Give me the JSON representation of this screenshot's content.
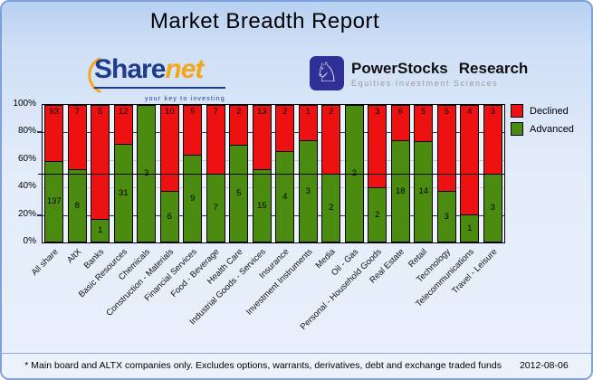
{
  "title": "Market Breadth Report",
  "logos": {
    "sharenet": {
      "share": "Share",
      "net": "net",
      "tagline": "your key to investing"
    },
    "powerstocks": {
      "word1": "PowerStocks",
      "word2": "Research",
      "subtitle": "Equities Investment Sciences",
      "icon": "knight-chess-icon",
      "icon_glyph": "♘"
    }
  },
  "chart_data": {
    "type": "bar",
    "stacking": "percent-100-stacked",
    "title": "Market Breadth Report",
    "categories": [
      "All share",
      "AltX",
      "Banks",
      "Basic Resources",
      "Chemicals",
      "Construction - Materials",
      "Financial Services",
      "Food - Beverage",
      "Health Care",
      "Industrial Goods - Services",
      "Insurance",
      "Investment Instruments",
      "Media",
      "Oil - Gas",
      "Personal - Household Goods",
      "Real Estate",
      "Retail",
      "Technology",
      "Telecommunications",
      "Travel - Leisure"
    ],
    "series": [
      {
        "name": "Declined",
        "color": "#ee1111",
        "values": [
          93,
          7,
          5,
          12,
          0,
          10,
          5,
          7,
          2,
          13,
          2,
          1,
          2,
          0,
          3,
          6,
          5,
          5,
          4,
          3
        ]
      },
      {
        "name": "Advanced",
        "color": "#4b8b10",
        "values": [
          137,
          8,
          1,
          31,
          3,
          6,
          9,
          7,
          5,
          15,
          4,
          3,
          2,
          2,
          2,
          18,
          14,
          3,
          1,
          3
        ]
      }
    ],
    "ylim": [
      0,
      100
    ],
    "yticks": [
      0,
      20,
      40,
      60,
      80,
      100
    ],
    "ytick_labels": [
      "0%",
      "20%",
      "40%",
      "60%",
      "80%",
      "100%"
    ],
    "grid_navy_lines": [
      20,
      80
    ],
    "grid_gray_lines": [
      40,
      60
    ],
    "reference_line": 50,
    "legend_position": "top-right",
    "colors": {
      "navy_grid": "#2e2e7a",
      "gray_grid": "#c6c6c6",
      "plot_bg": "#edf2fb",
      "bar_border": "#000000"
    }
  },
  "footer": {
    "note": "* Main board and ALTX companies only. Excludes options, warrants, derivatives, debt and exchange traded funds",
    "date": "2012-08-06"
  }
}
